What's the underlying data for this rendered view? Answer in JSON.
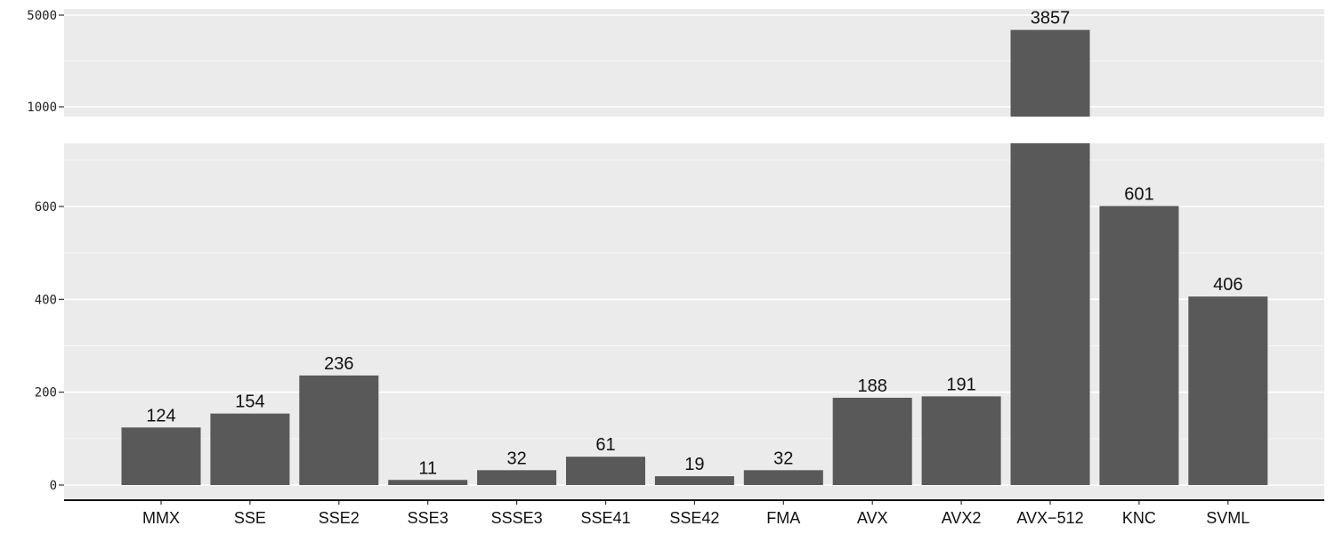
{
  "chart_data": {
    "type": "bar",
    "title": "",
    "xlabel": "",
    "ylabel": "",
    "axis_break": true,
    "categories": [
      "MMX",
      "SSE",
      "SSE2",
      "SSE3",
      "SSSE3",
      "SSE41",
      "SSE42",
      "FMA",
      "AVX",
      "AVX2",
      "AVX-512",
      "KNC",
      "SVML"
    ],
    "values": [
      124,
      154,
      236,
      11,
      32,
      61,
      19,
      32,
      188,
      191,
      3857,
      601,
      406
    ],
    "data_labels": [
      "124",
      "154",
      "236",
      "11",
      "32",
      "61",
      "19",
      "32",
      "188",
      "191",
      "3857",
      "601",
      "406"
    ],
    "tick_labels": [
      "MMX",
      "SSE",
      "SSE2",
      "SSE3",
      "SSSE3",
      "SSE41",
      "SSE42",
      "FMA",
      "AVX",
      "AVX2",
      "AVX−512",
      "KNC",
      "SVML"
    ],
    "y_lower_ticks": [
      0,
      200,
      400,
      600
    ],
    "y_lower_tick_labels": [
      "0",
      "200",
      "400",
      "600"
    ],
    "y_lower_range": [
      0,
      720
    ],
    "y_upper_ticks": [
      1000,
      5000
    ],
    "y_upper_tick_labels": [
      "1000",
      "5000"
    ],
    "y_upper_scale": "log",
    "grid": true,
    "legend": "none",
    "colors": {
      "bar": "#595959",
      "panel": "#ebebeb",
      "grid": "#ffffff"
    }
  }
}
